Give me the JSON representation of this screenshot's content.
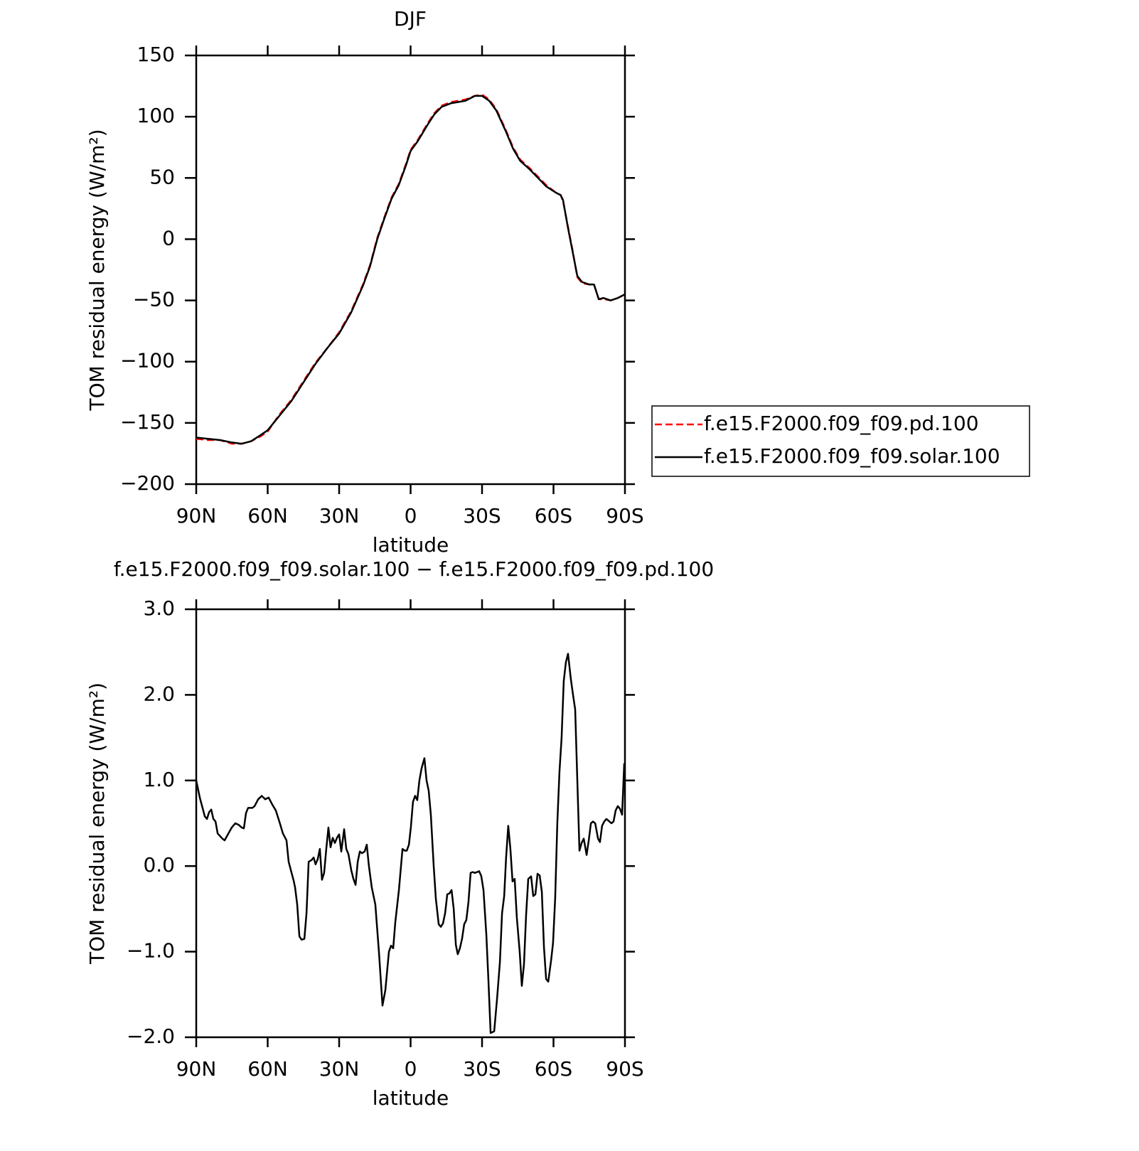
{
  "chart_data": [
    {
      "type": "line",
      "title": "DJF",
      "xlabel": "latitude",
      "ylabel": "TOM residual energy (W/m²)",
      "xlim": [
        90,
        -90
      ],
      "xticks": [
        {
          "value": 90,
          "label": "90N"
        },
        {
          "value": 60,
          "label": "60N"
        },
        {
          "value": 30,
          "label": "30N"
        },
        0,
        {
          "value": -30,
          "label": "30S"
        },
        {
          "value": -60,
          "label": "60S"
        },
        {
          "value": -90,
          "label": "90S"
        }
      ],
      "ylim": [
        -200,
        150
      ],
      "yticks": [
        {
          "value": -200,
          "label": "−200"
        },
        {
          "value": -150,
          "label": "−150"
        },
        {
          "value": -100,
          "label": "−100"
        },
        {
          "value": -50,
          "label": "−50"
        },
        0,
        50,
        100,
        150
      ],
      "legend": "right",
      "x": [
        90,
        85,
        80,
        75,
        71,
        67,
        63,
        60,
        55,
        50,
        45,
        40,
        35,
        30,
        25,
        20,
        17,
        14,
        11,
        8,
        5,
        2,
        0,
        -3,
        -7,
        -10,
        -13,
        -17,
        -20,
        -23,
        -27,
        -30,
        -33,
        -36,
        -40,
        -43,
        -46,
        -50,
        -54,
        -57,
        -61,
        -63,
        -64,
        -66,
        -68,
        -70,
        -72,
        -75,
        -77,
        -79,
        -81,
        -84,
        -87,
        -90
      ],
      "series": [
        {
          "name": "f.e15.F2000.f09_f09.pd.100",
          "color": "#ff0000",
          "dash": true,
          "values": [
            -163,
            -164,
            -164,
            -167,
            -167,
            -165,
            -161,
            -157,
            -143,
            -131,
            -116,
            -101,
            -89,
            -76,
            -59,
            -37,
            -21,
            1,
            18,
            34,
            45,
            61,
            73,
            81,
            94,
            103,
            109,
            112,
            113,
            114,
            117,
            118,
            114,
            106,
            89,
            75,
            65,
            58,
            50,
            44,
            38,
            36,
            31,
            11,
            -9,
            -31,
            -36,
            -37,
            -37,
            -49,
            -49,
            -50,
            -48,
            -45
          ]
        },
        {
          "name": "f.e15.F2000.f09_f09.solar.100",
          "color": "#000000",
          "dash": false,
          "values": [
            -162,
            -163,
            -164,
            -166,
            -167,
            -165,
            -160,
            -156,
            -144,
            -132,
            -117,
            -102,
            -89,
            -77,
            -60,
            -38,
            -22,
            0,
            17,
            33,
            44,
            60,
            72,
            80,
            93,
            102,
            108,
            111,
            112,
            113,
            117,
            117,
            113,
            105,
            88,
            74,
            64,
            57,
            49,
            43,
            38,
            36,
            32,
            10,
            -10,
            -30,
            -35,
            -37,
            -37,
            -49,
            -48,
            -50,
            -48,
            -45
          ]
        }
      ]
    },
    {
      "type": "line",
      "title": "f.e15.F2000.f09_f09.solar.100 − f.e15.F2000.f09_f09.pd.100",
      "xlabel": "latitude",
      "ylabel": "TOM residual energy (W/m²)",
      "xlim": [
        90,
        -90
      ],
      "xticks": [
        {
          "value": 90,
          "label": "90N"
        },
        {
          "value": 60,
          "label": "60N"
        },
        {
          "value": 30,
          "label": "30N"
        },
        0,
        {
          "value": -30,
          "label": "30S"
        },
        {
          "value": -60,
          "label": "60S"
        },
        {
          "value": -90,
          "label": "90S"
        }
      ],
      "ylim": [
        -2,
        3
      ],
      "yticks": [
        {
          "value": -2,
          "label": "−2.0"
        },
        {
          "value": -1,
          "label": "−1.0"
        },
        {
          "value": 0,
          "label": "0.0"
        },
        {
          "value": 1,
          "label": "1.0"
        },
        {
          "value": 2,
          "label": "2.0"
        },
        {
          "value": 3,
          "label": "3.0"
        }
      ],
      "x": [
        90.0,
        88.5,
        86.4,
        85.5,
        84.6,
        83.7,
        82.8,
        81.9,
        81.0,
        79.0,
        78.1,
        75.1,
        73.6,
        72.1,
        70.9,
        70.0,
        69.1,
        68.2,
        66.4,
        65.5,
        64.0,
        62.5,
        61.0,
        59.6,
        58.1,
        56.6,
        55.1,
        53.6,
        52.1,
        51.2,
        49.1,
        48.5,
        47.6,
        46.7,
        45.8,
        44.6,
        43.7,
        42.8,
        41.6,
        40.7,
        39.9,
        39.0,
        38.1,
        37.2,
        36.3,
        35.4,
        34.5,
        33.6,
        32.7,
        31.8,
        30.9,
        30.0,
        29.1,
        27.9,
        27.0,
        26.1,
        24.9,
        24.0,
        23.1,
        22.2,
        21.3,
        20.4,
        19.3,
        18.4,
        17.5,
        16.3,
        14.8,
        13.3,
        11.8,
        10.6,
        9.1,
        8.2,
        7.3,
        6.4,
        4.9,
        3.4,
        2.5,
        1.6,
        0.7,
        -0.1,
        -1.0,
        -1.9,
        -2.8,
        -3.7,
        -4.6,
        -5.8,
        -6.7,
        -7.6,
        -8.5,
        -9.7,
        -10.6,
        -11.8,
        -12.7,
        -13.6,
        -14.5,
        -15.4,
        -16.3,
        -17.2,
        -18.1,
        -19.0,
        -19.8,
        -20.7,
        -21.6,
        -22.5,
        -23.4,
        -24.3,
        -25.2,
        -26.1,
        -27.0,
        -27.9,
        -28.8,
        -29.7,
        -30.6,
        -31.8,
        -32.7,
        -33.6,
        -35.1,
        -36.3,
        -37.5,
        -38.4,
        -39.3,
        -40.1,
        -41.0,
        -41.9,
        -42.8,
        -43.7,
        -44.6,
        -45.8,
        -46.7,
        -47.6,
        -48.5,
        -49.4,
        -50.6,
        -51.5,
        -52.4,
        -53.3,
        -54.2,
        -55.1,
        -56.0,
        -56.9,
        -57.8,
        -59.0,
        -59.8,
        -60.7,
        -61.6,
        -62.5,
        -63.4,
        -64.3,
        -65.2,
        -66.1,
        -67.3,
        -68.2,
        -69.1,
        -70.0,
        -70.9,
        -71.8,
        -72.7,
        -73.9,
        -74.8,
        -75.7,
        -76.6,
        -77.5,
        -78.7,
        -79.5,
        -80.4,
        -81.3,
        -82.2,
        -83.1,
        -84.3,
        -85.2,
        -86.1,
        -87.0,
        -87.9,
        -88.8,
        -89.7
      ],
      "series": [
        {
          "color": "#000000",
          "dash": false,
          "values": [
            1.0,
            0.8,
            0.58,
            0.55,
            0.63,
            0.66,
            0.55,
            0.52,
            0.38,
            0.32,
            0.3,
            0.45,
            0.5,
            0.48,
            0.45,
            0.44,
            0.62,
            0.68,
            0.68,
            0.7,
            0.78,
            0.82,
            0.78,
            0.8,
            0.72,
            0.65,
            0.52,
            0.38,
            0.3,
            0.05,
            -0.17,
            -0.25,
            -0.45,
            -0.82,
            -0.86,
            -0.85,
            -0.55,
            0.05,
            0.07,
            0.1,
            0.02,
            0.08,
            0.2,
            -0.16,
            -0.08,
            0.2,
            0.45,
            0.22,
            0.33,
            0.27,
            0.33,
            0.37,
            0.17,
            0.43,
            0.2,
            0.14,
            -0.05,
            -0.15,
            -0.22,
            0.05,
            0.17,
            0.15,
            0.17,
            0.25,
            0.0,
            -0.25,
            -0.45,
            -1.0,
            -1.63,
            -1.45,
            -1.0,
            -0.93,
            -0.96,
            -0.65,
            -0.28,
            0.2,
            0.18,
            0.18,
            0.25,
            0.45,
            0.75,
            0.82,
            0.77,
            1.0,
            1.14,
            1.26,
            1.0,
            0.88,
            0.6,
            0.0,
            -0.38,
            -0.68,
            -0.71,
            -0.67,
            -0.55,
            -0.33,
            -0.32,
            -0.28,
            -0.5,
            -0.92,
            -1.03,
            -0.96,
            -0.85,
            -0.68,
            -0.63,
            -0.42,
            -0.08,
            -0.07,
            -0.08,
            -0.07,
            -0.06,
            -0.12,
            -0.28,
            -0.8,
            -1.35,
            -1.95,
            -1.93,
            -1.55,
            -1.12,
            -0.55,
            -0.35,
            0.1,
            0.47,
            0.2,
            -0.18,
            -0.15,
            -0.6,
            -1.0,
            -1.4,
            -1.15,
            -0.57,
            -0.15,
            -0.12,
            -0.35,
            -0.33,
            -0.09,
            -0.11,
            -0.3,
            -0.95,
            -1.32,
            -1.35,
            -1.1,
            -0.9,
            -0.38,
            0.5,
            1.1,
            1.5,
            2.16,
            2.38,
            2.48,
            2.18,
            2.0,
            1.83,
            1.0,
            0.18,
            0.27,
            0.32,
            0.13,
            0.3,
            0.5,
            0.52,
            0.5,
            0.32,
            0.28,
            0.47,
            0.52,
            0.55,
            0.53,
            0.5,
            0.52,
            0.65,
            0.7,
            0.67,
            0.6,
            1.2
          ]
        }
      ]
    }
  ]
}
